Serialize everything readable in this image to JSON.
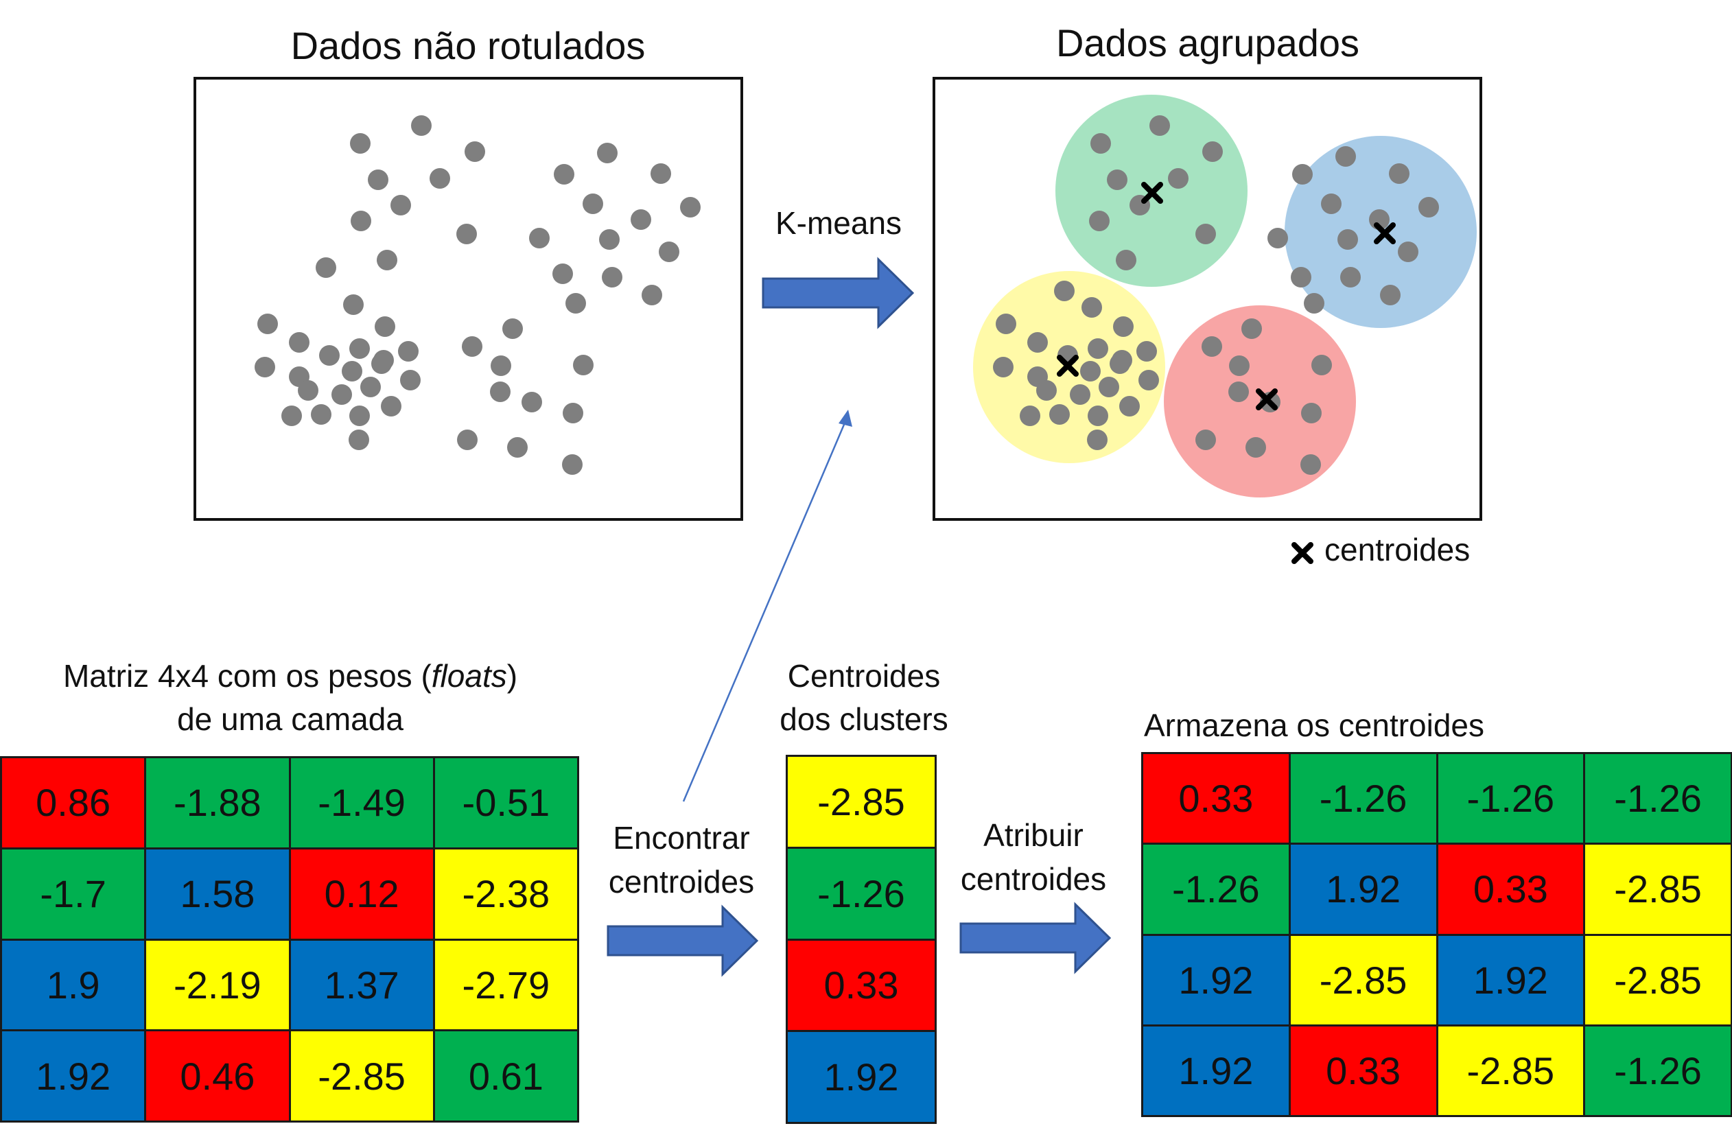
{
  "colors": {
    "red": "#ff0000",
    "green": "#00b050",
    "blue": "#0070c0",
    "yellow": "#ffff00",
    "point": "#7f7f7f",
    "arrow": "#4472c4",
    "arrow_border": "#2f528f",
    "halo_green": "#a6e3c1",
    "halo_blue": "#a9cce8",
    "halo_yellow": "#fffaa8",
    "halo_red": "#f8a5a5"
  },
  "top": {
    "unlabeled_title": "Dados não rotulados",
    "clustered_title": "Dados agrupados",
    "kmeans_label": "K-means",
    "legend_icon": "cross-icon",
    "legend_text": "centroides"
  },
  "bottom": {
    "matrix_caption_pre": "Matriz 4x4 com os pesos (",
    "matrix_caption_em": "floats",
    "matrix_caption_post": ")",
    "matrix_caption_line2": "de uma camada",
    "find_label_line1": "Encontrar",
    "find_label_line2": "centroides",
    "centroids_caption_line1": "Centroides",
    "centroids_caption_line2": "dos clusters",
    "assign_label_line1": "Atribuir",
    "assign_label_line2": "centroides",
    "stored_caption": "Armazena os centroides"
  },
  "weights_matrix": [
    [
      {
        "value": "0.86",
        "color": "red"
      },
      {
        "value": "-1.88",
        "color": "green"
      },
      {
        "value": "-1.49",
        "color": "green"
      },
      {
        "value": "-0.51",
        "color": "green"
      }
    ],
    [
      {
        "value": "-1.7",
        "color": "green"
      },
      {
        "value": "1.58",
        "color": "blue"
      },
      {
        "value": "0.12",
        "color": "red"
      },
      {
        "value": "-2.38",
        "color": "yellow"
      }
    ],
    [
      {
        "value": "1.9",
        "color": "blue"
      },
      {
        "value": "-2.19",
        "color": "yellow"
      },
      {
        "value": "1.37",
        "color": "blue"
      },
      {
        "value": "-2.79",
        "color": "yellow"
      }
    ],
    [
      {
        "value": "1.92",
        "color": "blue"
      },
      {
        "value": "0.46",
        "color": "red"
      },
      {
        "value": "-2.85",
        "color": "yellow"
      },
      {
        "value": "0.61",
        "color": "green"
      }
    ]
  ],
  "centroids": [
    {
      "value": "-2.85",
      "color": "yellow"
    },
    {
      "value": "-1.26",
      "color": "green"
    },
    {
      "value": "0.33",
      "color": "red"
    },
    {
      "value": "1.92",
      "color": "blue"
    }
  ],
  "stored_matrix": [
    [
      {
        "value": "0.33",
        "color": "red"
      },
      {
        "value": "-1.26",
        "color": "green"
      },
      {
        "value": "-1.26",
        "color": "green"
      },
      {
        "value": "-1.26",
        "color": "green"
      }
    ],
    [
      {
        "value": "-1.26",
        "color": "green"
      },
      {
        "value": "1.92",
        "color": "blue"
      },
      {
        "value": "0.33",
        "color": "red"
      },
      {
        "value": "-2.85",
        "color": "yellow"
      }
    ],
    [
      {
        "value": "1.92",
        "color": "blue"
      },
      {
        "value": "-2.85",
        "color": "yellow"
      },
      {
        "value": "1.92",
        "color": "blue"
      },
      {
        "value": "-2.85",
        "color": "yellow"
      }
    ],
    [
      {
        "value": "1.92",
        "color": "blue"
      },
      {
        "value": "0.33",
        "color": "red"
      },
      {
        "value": "-2.85",
        "color": "yellow"
      },
      {
        "value": "-1.26",
        "color": "green"
      }
    ]
  ]
}
